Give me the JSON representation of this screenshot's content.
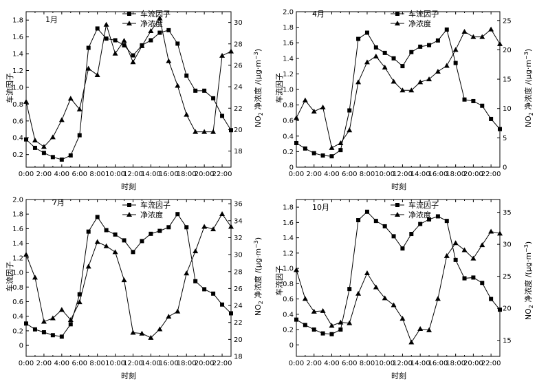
{
  "chart_data": [
    {
      "type": "line",
      "title": "1月",
      "xlabel": "时刻",
      "ylabel_left": "车流因子",
      "ylabel_right_main": "NO",
      "ylabel_right_sub": "2",
      "ylabel_right_rest": " 净浓度 /(μg·m",
      "ylabel_right_sup": "−3",
      "ylabel_right_end": ")",
      "x": [
        0,
        1,
        2,
        3,
        4,
        5,
        6,
        7,
        8,
        9,
        10,
        11,
        12,
        13,
        14,
        15,
        16,
        17,
        18,
        19,
        20,
        21,
        22,
        23
      ],
      "xticks": [
        "0:00",
        "2:00",
        "4:00",
        "6:00",
        "8:00",
        "10:00",
        "12:00",
        "14:00",
        "16:00",
        "18:00",
        "20:00",
        "22:00"
      ],
      "xlim": [
        0,
        23
      ],
      "ylim_left": [
        0.05,
        1.9
      ],
      "yticks_left": [
        0.2,
        0.4,
        0.6,
        0.8,
        1.0,
        1.2,
        1.4,
        1.6,
        1.8
      ],
      "ytick_labels_left": [
        "0.2",
        "0.4",
        "0.6",
        "0.8",
        "1.0",
        "1.2",
        "1.4",
        "1.6",
        "1.8"
      ],
      "ylim_right": [
        16.5,
        31
      ],
      "yticks_right": [
        18,
        20,
        22,
        24,
        26,
        28,
        30
      ],
      "ytick_labels_right": [
        "18",
        "20",
        "22",
        "24",
        "26",
        "28",
        "30"
      ],
      "series": [
        {
          "name": "车流因子",
          "axis": "left",
          "marker": "square",
          "values": [
            0.38,
            0.28,
            0.22,
            0.17,
            0.14,
            0.19,
            0.43,
            1.47,
            1.7,
            1.58,
            1.56,
            1.5,
            1.38,
            1.5,
            1.56,
            1.65,
            1.68,
            1.52,
            1.14,
            0.96,
            0.96,
            0.87,
            0.66,
            0.49
          ]
        },
        {
          "name": "净浓度",
          "axis": "right",
          "marker": "triangle",
          "values": [
            22.6,
            19.0,
            18.4,
            19.3,
            20.9,
            22.9,
            21.9,
            25.7,
            25.1,
            29.8,
            27.1,
            28.3,
            26.3,
            27.8,
            29.2,
            30.4,
            26.4,
            24.1,
            21.4,
            19.8,
            19.8,
            19.8,
            26.9,
            27.3
          ]
        }
      ],
      "legend": {
        "position": "top-center",
        "labels": [
          "车流因子",
          "净浓度"
        ]
      }
    },
    {
      "type": "line",
      "title": "4月",
      "xlabel": "时刻",
      "ylabel_left": "车流因子",
      "ylabel_right_main": "NO",
      "ylabel_right_sub": "2",
      "ylabel_right_rest": " 净浓度 /(μg·m",
      "ylabel_right_sup": "−3",
      "ylabel_right_end": ")",
      "x": [
        0,
        1,
        2,
        3,
        4,
        5,
        6,
        7,
        8,
        9,
        10,
        11,
        12,
        13,
        14,
        15,
        16,
        17,
        18,
        19,
        20,
        21,
        22,
        23
      ],
      "xticks": [
        "0:00",
        "2:00",
        "4:00",
        "6:00",
        "8:00",
        "10:00",
        "12:00",
        "14:00",
        "16:00",
        "18:00",
        "20:00",
        "22:00"
      ],
      "xlim": [
        0,
        23
      ],
      "ylim_left": [
        0,
        2.0
      ],
      "yticks_left": [
        0,
        0.2,
        0.4,
        0.6,
        0.8,
        1.0,
        1.2,
        1.4,
        1.6,
        1.8,
        2.0
      ],
      "ytick_labels_left": [
        "0",
        "0.2",
        "0.4",
        "0.6",
        "0.8",
        "1.0",
        "1.2",
        "1.4",
        "1.6",
        "1.8",
        "2.0"
      ],
      "ylim_right": [
        0,
        26.5
      ],
      "yticks_right": [
        0,
        5,
        10,
        15,
        20,
        25
      ],
      "ytick_labels_right": [
        "0",
        "5",
        "10",
        "15",
        "20",
        "25"
      ],
      "series": [
        {
          "name": "车流因子",
          "axis": "left",
          "marker": "square",
          "values": [
            0.31,
            0.24,
            0.18,
            0.15,
            0.14,
            0.22,
            0.73,
            1.65,
            1.73,
            1.54,
            1.47,
            1.4,
            1.3,
            1.48,
            1.55,
            1.57,
            1.63,
            1.77,
            1.34,
            0.87,
            0.85,
            0.79,
            0.62,
            0.49
          ]
        },
        {
          "name": "净浓度",
          "axis": "right",
          "marker": "triangle",
          "values": [
            8.4,
            11.4,
            9.5,
            10.2,
            3.3,
            4.1,
            6.3,
            14.5,
            17.9,
            18.9,
            17.0,
            14.6,
            13.1,
            13.1,
            14.5,
            15.0,
            16.3,
            17.3,
            20.0,
            23.1,
            22.2,
            22.2,
            23.5,
            21.0
          ]
        }
      ],
      "legend": {
        "position": "top-center",
        "labels": [
          "车流因子",
          "净浓度"
        ]
      }
    },
    {
      "type": "line",
      "title": "7月",
      "xlabel": "时刻",
      "ylabel_left": "车流因子",
      "ylabel_right_main": "NO",
      "ylabel_right_sub": "2",
      "ylabel_right_rest": " 净浓度 /(μg·m",
      "ylabel_right_sup": "−3",
      "ylabel_right_end": ")",
      "x": [
        0,
        1,
        2,
        3,
        4,
        5,
        6,
        7,
        8,
        9,
        10,
        11,
        12,
        13,
        14,
        15,
        16,
        17,
        18,
        19,
        20,
        21,
        22,
        23
      ],
      "xticks": [
        "0:00",
        "2:00",
        "4:00",
        "6:00",
        "8:00",
        "10:00",
        "12:00",
        "14:00",
        "16:00",
        "18:00",
        "20:00",
        "22:00"
      ],
      "xlim": [
        0,
        23
      ],
      "ylim_left": [
        -0.15,
        2.0
      ],
      "yticks_left": [
        0,
        0.2,
        0.4,
        0.6,
        0.8,
        1.0,
        1.2,
        1.4,
        1.6,
        1.8,
        2.0
      ],
      "ytick_labels_left": [
        "0",
        "0.2",
        "0.4",
        "0.6",
        "0.8",
        "1.0",
        "1.2",
        "1.4",
        "1.6",
        "1.8",
        "2.0"
      ],
      "ylim_right": [
        18,
        36.5
      ],
      "yticks_right": [
        18,
        20,
        22,
        24,
        26,
        28,
        30,
        32,
        34,
        36
      ],
      "ytick_labels_right": [
        "18",
        "20",
        "22",
        "24",
        "26",
        "28",
        "30",
        "32",
        "34",
        "36"
      ],
      "series": [
        {
          "name": "车流因子",
          "axis": "left",
          "marker": "square",
          "values": [
            0.3,
            0.22,
            0.18,
            0.14,
            0.12,
            0.29,
            0.7,
            1.56,
            1.76,
            1.58,
            1.52,
            1.44,
            1.28,
            1.43,
            1.53,
            1.57,
            1.62,
            1.8,
            1.62,
            0.88,
            0.77,
            0.71,
            0.56,
            0.44
          ]
        },
        {
          "name": "净浓度",
          "axis": "right",
          "marker": "triangle",
          "values": [
            30.0,
            27.3,
            22.1,
            22.5,
            23.5,
            22.3,
            24.4,
            28.6,
            31.5,
            31.0,
            30.3,
            27.0,
            20.8,
            20.7,
            20.2,
            21.2,
            22.7,
            23.3,
            27.8,
            30.4,
            33.3,
            33.0,
            34.8,
            33.3
          ]
        }
      ],
      "legend": {
        "position": "top-center",
        "labels": [
          "车流因子",
          "净浓度"
        ]
      }
    },
    {
      "type": "line",
      "title": "10月",
      "xlabel": "时刻",
      "ylabel_left": "车流因子",
      "ylabel_right_main": "NO",
      "ylabel_right_sub": "2",
      "ylabel_right_rest": " 净浓度 /(μg·m",
      "ylabel_right_sup": "−3",
      "ylabel_right_end": ")",
      "x": [
        0,
        1,
        2,
        3,
        4,
        5,
        6,
        7,
        8,
        9,
        10,
        11,
        12,
        13,
        14,
        15,
        16,
        17,
        18,
        19,
        20,
        21,
        22,
        23
      ],
      "xticks": [
        "0:00",
        "2:00",
        "4:00",
        "6:00",
        "8:00",
        "10:00",
        "12:00",
        "14:00",
        "16:00",
        "18:00",
        "20:00",
        "22:00"
      ],
      "xlim": [
        0,
        23
      ],
      "ylim_left": [
        -0.15,
        1.9
      ],
      "yticks_left": [
        0,
        0.2,
        0.4,
        0.6,
        0.8,
        1.0,
        1.2,
        1.4,
        1.6,
        1.8
      ],
      "ytick_labels_left": [
        "0",
        "0.2",
        "0.4",
        "0.6",
        "0.8",
        "1.0",
        "1.2",
        "1.4",
        "1.6",
        "1.8"
      ],
      "ylim_right": [
        12.5,
        37
      ],
      "yticks_right": [
        15,
        20,
        25,
        30,
        35
      ],
      "ytick_labels_right": [
        "15",
        "20",
        "25",
        "30",
        "35"
      ],
      "series": [
        {
          "name": "车流因子",
          "axis": "left",
          "marker": "square",
          "values": [
            0.33,
            0.26,
            0.2,
            0.15,
            0.14,
            0.2,
            0.73,
            1.63,
            1.74,
            1.62,
            1.55,
            1.42,
            1.26,
            1.45,
            1.58,
            1.64,
            1.68,
            1.62,
            1.11,
            0.87,
            0.88,
            0.81,
            0.6,
            0.46
          ]
        },
        {
          "name": "净浓度",
          "axis": "right",
          "marker": "triangle",
          "values": [
            26.0,
            21.5,
            19.5,
            19.6,
            17.3,
            17.8,
            17.7,
            22.3,
            25.5,
            23.3,
            21.6,
            20.5,
            18.4,
            14.7,
            16.8,
            16.6,
            21.5,
            28.2,
            30.2,
            29.1,
            27.8,
            29.9,
            32.0,
            31.7
          ]
        }
      ],
      "legend": {
        "position": "top-center",
        "labels": [
          "车流因子",
          "净浓度"
        ]
      }
    }
  ]
}
